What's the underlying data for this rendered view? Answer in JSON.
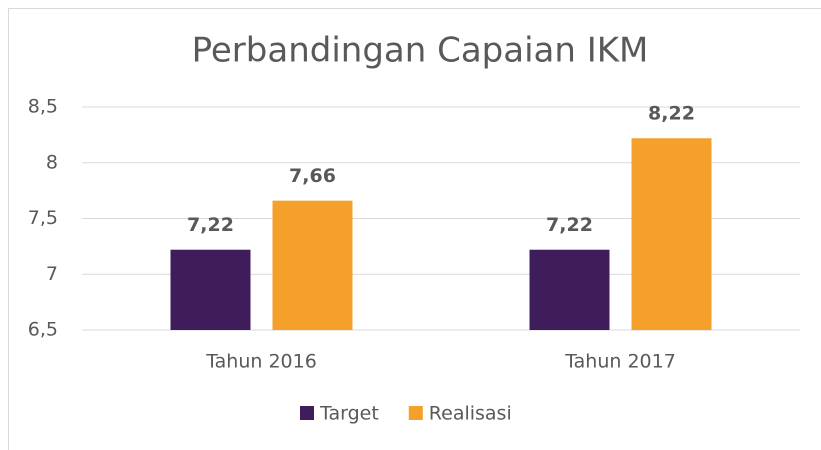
{
  "chart_data": {
    "type": "bar",
    "title": "Perbandingan Capaian IKM",
    "categories": [
      "Tahun 2016",
      "Tahun 2017"
    ],
    "series": [
      {
        "name": "Target",
        "color": "#3f1d5a",
        "values": [
          7.22,
          7.22
        ],
        "value_labels": [
          "7,22",
          "7,22"
        ]
      },
      {
        "name": "Realisasi",
        "color": "#f4a02b",
        "values": [
          7.66,
          8.22
        ],
        "value_labels": [
          "7,66",
          "8,22"
        ]
      }
    ],
    "ylim": [
      6.5,
      8.5
    ],
    "yticks": [
      {
        "value": 6.5,
        "label": "6,5"
      },
      7,
      {
        "value": 7.5,
        "label": "7,5"
      },
      8,
      {
        "value": 8.5,
        "label": "8,5"
      }
    ],
    "grid": true,
    "legend": "bottom"
  }
}
